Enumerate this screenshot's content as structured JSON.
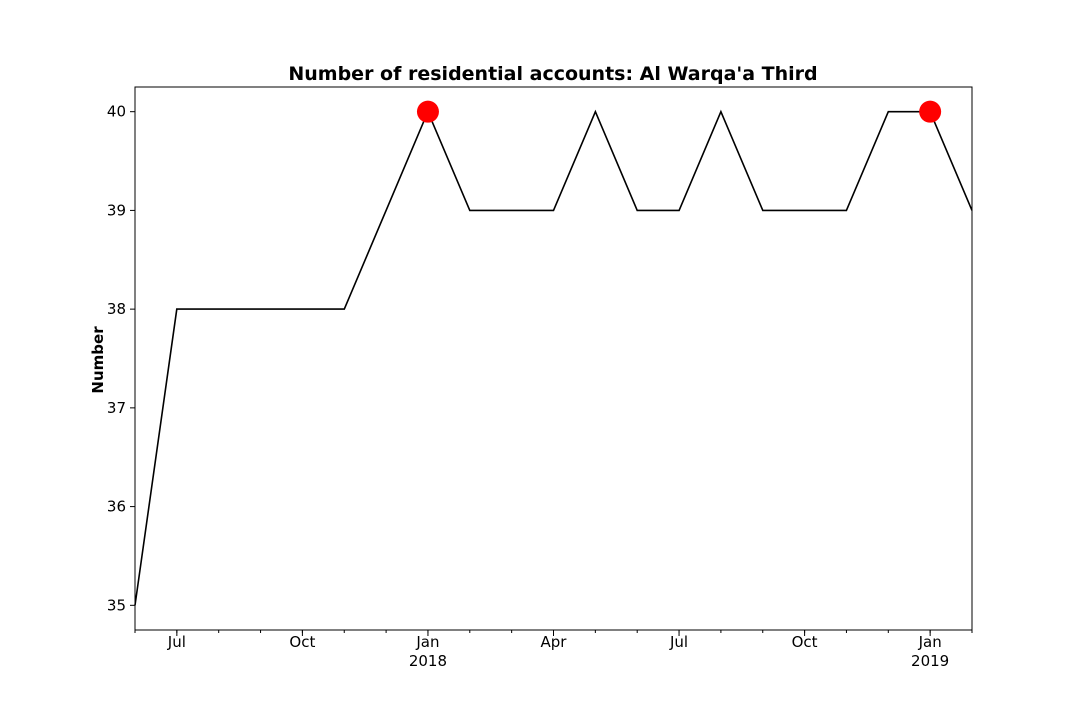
{
  "chart_data": {
    "type": "line",
    "title": "Number of residential accounts: Al Warqa'a Third",
    "xlabel": "",
    "ylabel": "Number",
    "xlim": [
      "2017-06",
      "2019-02"
    ],
    "ylim": [
      34.75,
      40.25
    ],
    "y_ticks": [
      35,
      36,
      37,
      38,
      39,
      40
    ],
    "x_ticks": [
      {
        "date": "2017-07",
        "label": "Jul",
        "sublabel": ""
      },
      {
        "date": "2017-10",
        "label": "Oct",
        "sublabel": ""
      },
      {
        "date": "2018-01",
        "label": "Jan",
        "sublabel": "2018"
      },
      {
        "date": "2018-04",
        "label": "Apr",
        "sublabel": ""
      },
      {
        "date": "2018-07",
        "label": "Jul",
        "sublabel": ""
      },
      {
        "date": "2018-10",
        "label": "Oct",
        "sublabel": ""
      },
      {
        "date": "2019-01",
        "label": "Jan",
        "sublabel": "2019"
      }
    ],
    "series": [
      {
        "color": "#000000",
        "x": [
          "2017-06",
          "2017-07",
          "2017-08",
          "2017-09",
          "2017-10",
          "2017-11",
          "2017-12",
          "2018-01",
          "2018-02",
          "2018-03",
          "2018-04",
          "2018-05",
          "2018-06",
          "2018-07",
          "2018-08",
          "2018-09",
          "2018-10",
          "2018-11",
          "2018-12",
          "2019-01",
          "2019-02"
        ],
        "y": [
          35,
          38,
          38,
          38,
          38,
          38,
          39,
          40,
          39,
          39,
          39,
          40,
          39,
          39,
          40,
          39,
          39,
          39,
          40,
          40,
          39
        ]
      }
    ],
    "highlights": [
      {
        "x": "2018-01",
        "y": 40,
        "color": "#ff0000"
      },
      {
        "x": "2019-01",
        "y": 40,
        "color": "#ff0000"
      }
    ],
    "grid": false,
    "legend": "none"
  }
}
